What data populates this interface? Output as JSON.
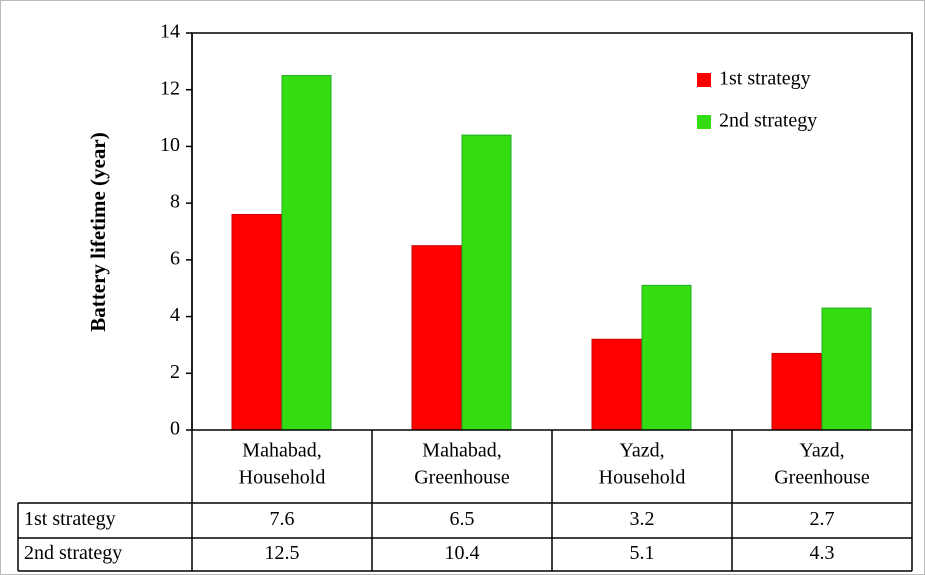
{
  "chart_data": {
    "type": "bar",
    "y_label": "Battery lifetime (year)",
    "categories": [
      [
        "Mahabad,",
        "Household"
      ],
      [
        "Mahabad,",
        "Greenhouse"
      ],
      [
        "Yazd,",
        "Household"
      ],
      [
        "Yazd,",
        "Greenhouse"
      ]
    ],
    "series": [
      {
        "name": "1st strategy",
        "color": "#ff0000",
        "values": [
          7.6,
          6.5,
          3.2,
          2.7
        ]
      },
      {
        "name": "2nd strategy",
        "color": "#33dd11",
        "values": [
          12.5,
          10.4,
          5.1,
          4.3
        ]
      }
    ],
    "ylim": [
      0,
      14
    ],
    "yticks": [
      0,
      2,
      4,
      6,
      8,
      10,
      12,
      14
    ],
    "legend": "upper right",
    "data_table": true
  }
}
